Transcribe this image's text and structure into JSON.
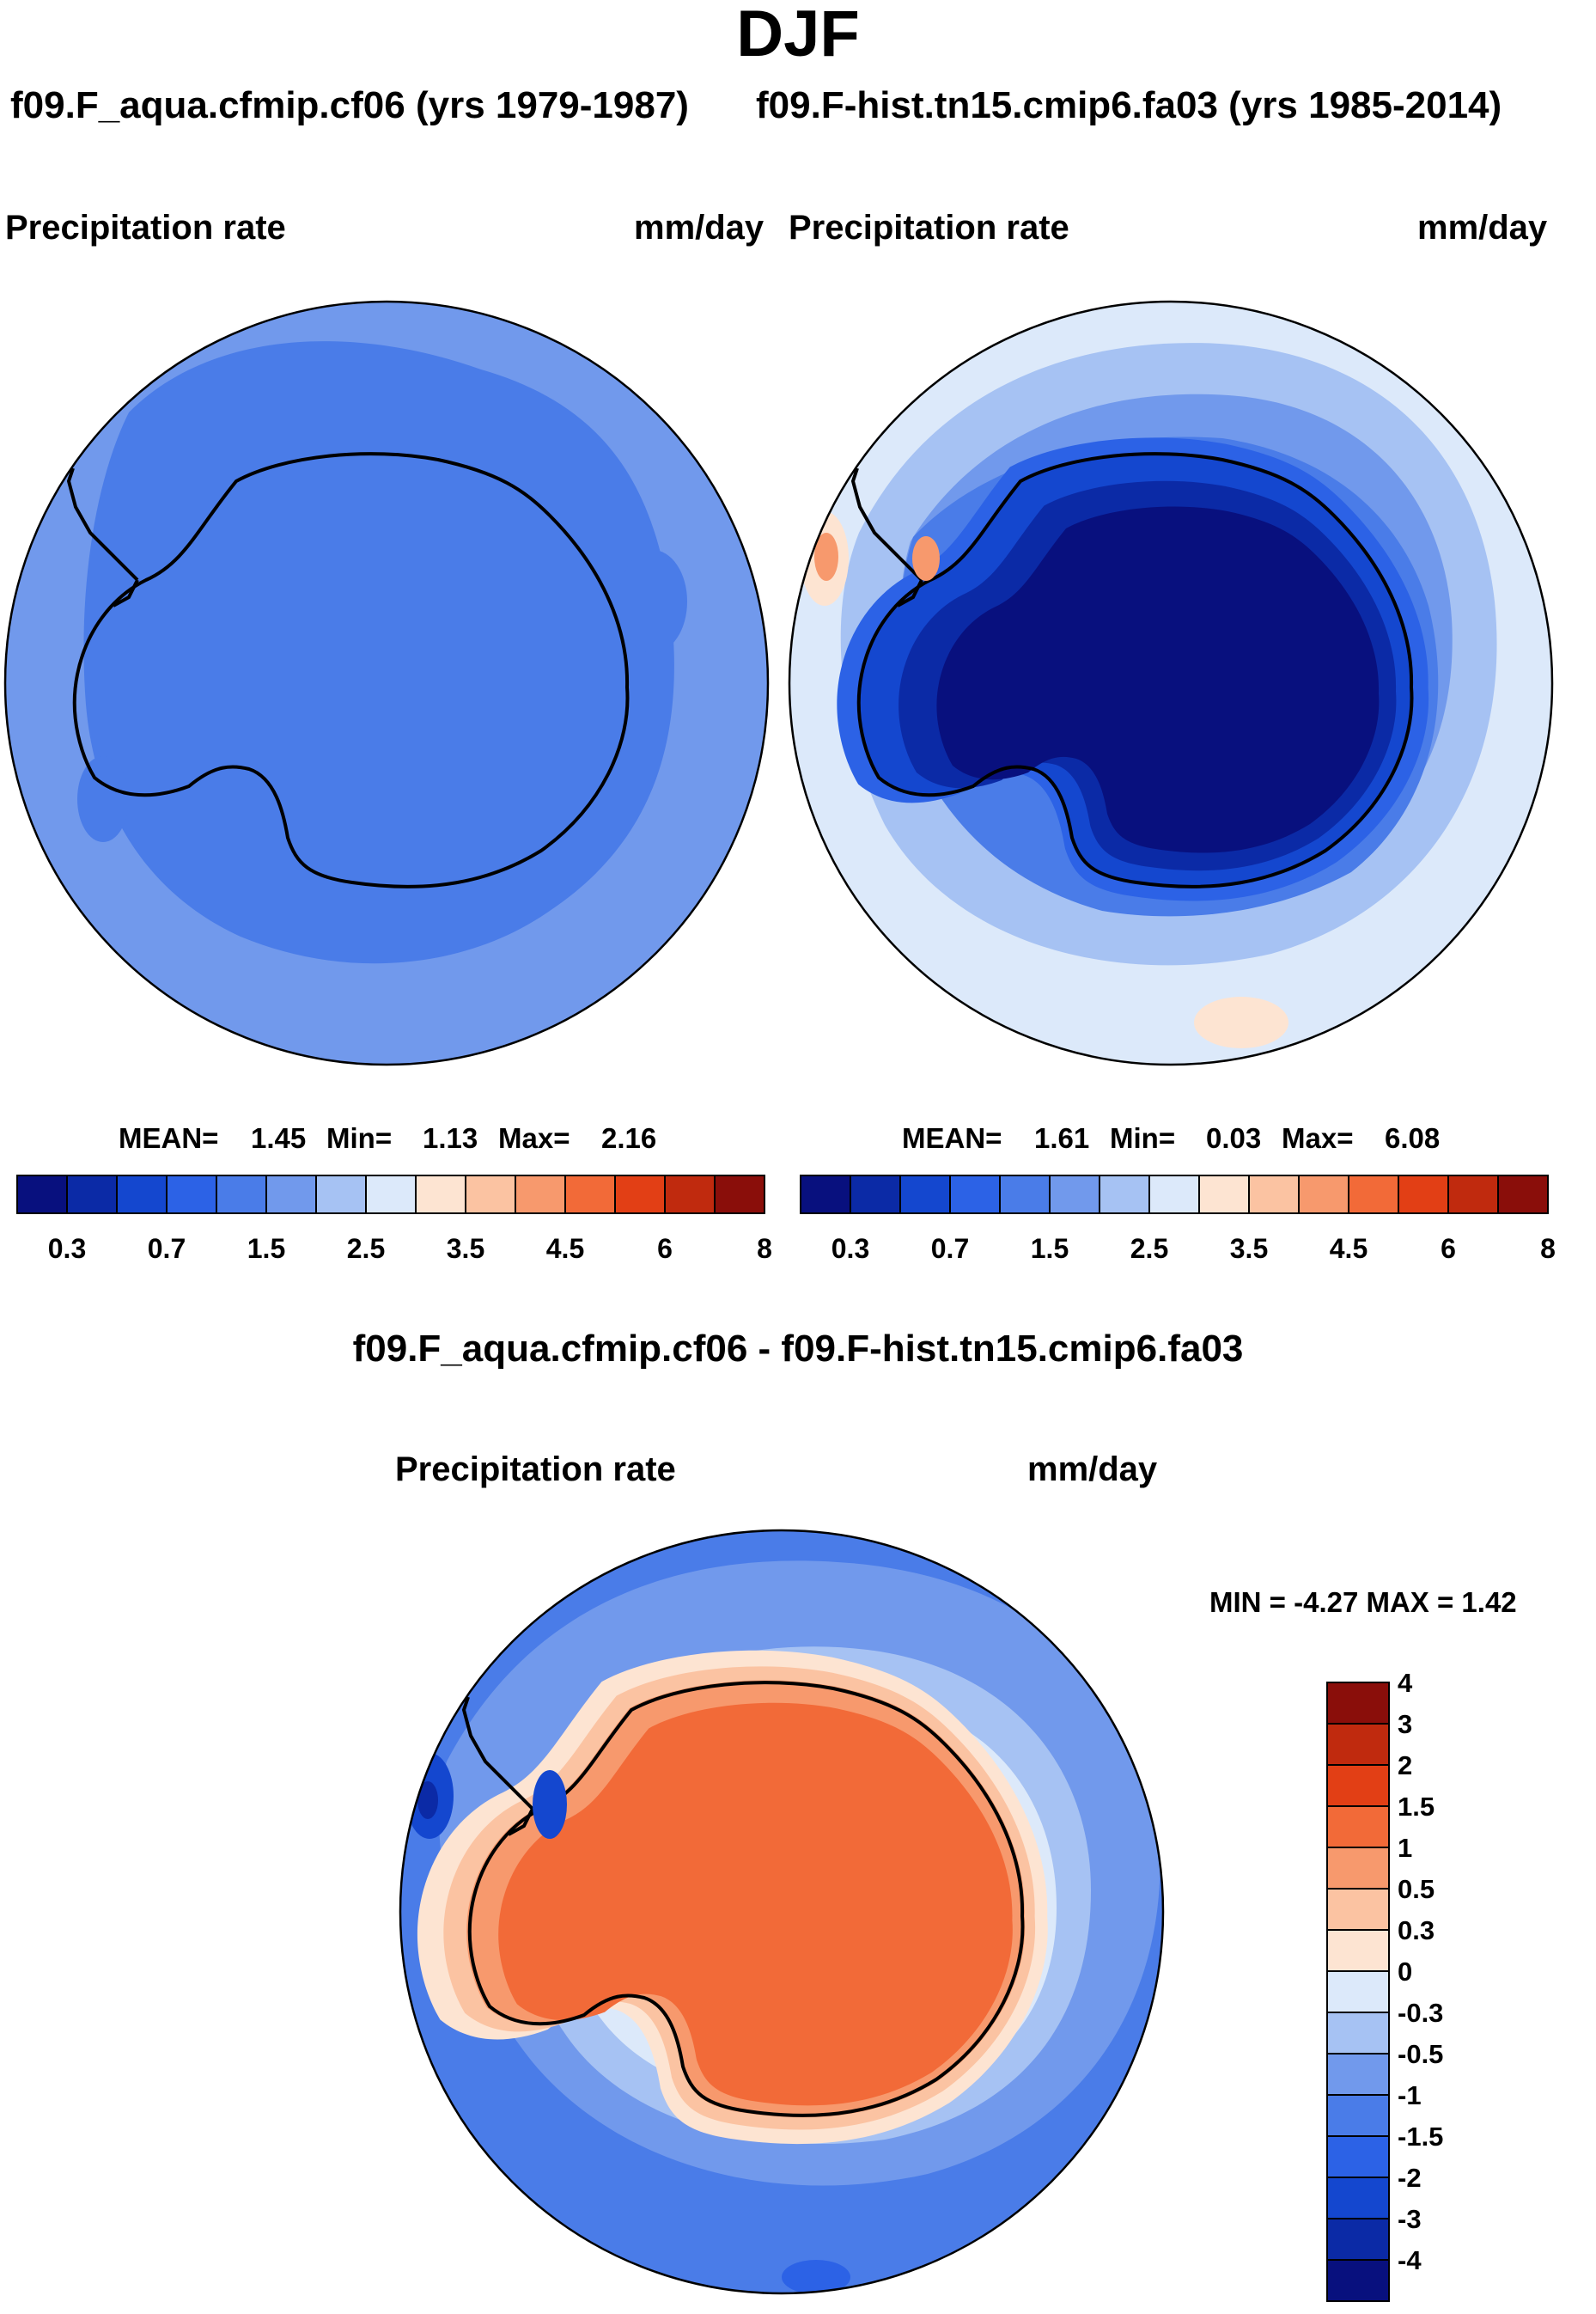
{
  "figure": {
    "title": "DJF"
  },
  "panels": [
    {
      "case_title": "f09.F_aqua.cfmip.cf06 (yrs 1979-1987)",
      "variable": "Precipitation rate",
      "units": "mm/day",
      "stats": {
        "mean_label": "MEAN=",
        "mean": "1.45",
        "min_label": "Min=",
        "min": "1.13",
        "max_label": "Max=",
        "max": "2.16"
      }
    },
    {
      "case_title": "f09.F-hist.tn15.cmip6.fa03 (yrs 1985-2014)",
      "variable": "Precipitation rate",
      "units": "mm/day",
      "stats": {
        "mean_label": "MEAN=",
        "mean": "1.61",
        "min_label": "Min=",
        "min": "0.03",
        "max_label": "Max=",
        "max": "6.08"
      }
    }
  ],
  "difference": {
    "title": "f09.F_aqua.cfmip.cf06 - f09.F-hist.tn15.cmip6.fa03",
    "variable": "Precipitation rate",
    "units": "mm/day",
    "minmax_text": "MIN =  -4.27 MAX =   1.42"
  },
  "colorbar_abs": {
    "orientation": "horizontal",
    "colors": [
      "#08107e",
      "#0b2aa6",
      "#1447cf",
      "#2c62e6",
      "#4a7ce8",
      "#7199ec",
      "#a6c2f3",
      "#dce9fa",
      "#fde4d2",
      "#fbc3a2",
      "#f7996d",
      "#f26a38",
      "#e23f15",
      "#c02a0e",
      "#8a0e0a"
    ],
    "ticks": [
      "0.3",
      "0.7",
      "1.5",
      "2.5",
      "3.5",
      "4.5",
      "6",
      "8"
    ]
  },
  "colorbar_diff": {
    "orientation": "vertical",
    "colors": [
      "#08107e",
      "#0b2aa6",
      "#1447cf",
      "#2c62e6",
      "#4a7ce8",
      "#7199ec",
      "#a6c2f3",
      "#dce9fa",
      "#fde4d2",
      "#fbc3a2",
      "#f7996d",
      "#f26a38",
      "#e23f15",
      "#c02a0e",
      "#8a0e0a"
    ],
    "ticks": [
      "-4",
      "-3",
      "-2",
      "-1.5",
      "-1",
      "-0.5",
      "-0.3",
      "0",
      "0.3",
      "0.5",
      "1",
      "1.5",
      "2",
      "3",
      "4"
    ]
  },
  "chart_data": [
    {
      "type": "heatmap",
      "projection": "south-polar-stereographic",
      "title": "f09.F_aqua.cfmip.cf06 (yrs 1979-1987)",
      "subtitle": "Precipitation rate",
      "units": "mm/day",
      "mean": 1.45,
      "min": 1.13,
      "max": 2.16,
      "levels": [
        0.2,
        0.3,
        0.5,
        0.7,
        1,
        1.5,
        2,
        2.5,
        3,
        3.5,
        4,
        4.5,
        5,
        6,
        7,
        8
      ]
    },
    {
      "type": "heatmap",
      "projection": "south-polar-stereographic",
      "title": "f09.F-hist.tn15.cmip6.fa03 (yrs 1985-2014)",
      "subtitle": "Precipitation rate",
      "units": "mm/day",
      "mean": 1.61,
      "min": 0.03,
      "max": 6.08,
      "levels": [
        0.2,
        0.3,
        0.5,
        0.7,
        1,
        1.5,
        2,
        2.5,
        3,
        3.5,
        4,
        4.5,
        5,
        6,
        7,
        8
      ]
    },
    {
      "type": "heatmap",
      "projection": "south-polar-stereographic",
      "title": "f09.F_aqua.cfmip.cf06 - f09.F-hist.tn15.cmip6.fa03",
      "subtitle": "Precipitation rate",
      "units": "mm/day",
      "min": -4.27,
      "max": 1.42,
      "levels": [
        -5,
        -4,
        -3,
        -2,
        -1.5,
        -1,
        -0.5,
        -0.3,
        0,
        0.3,
        0.5,
        1,
        1.5,
        2,
        3,
        4
      ]
    }
  ]
}
